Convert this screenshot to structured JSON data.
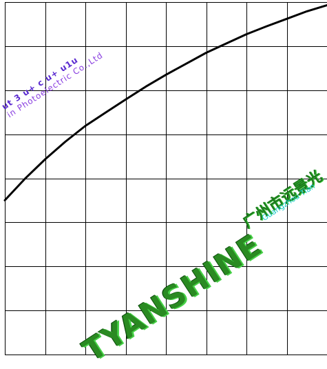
{
  "chart_data": {
    "type": "line",
    "title": "",
    "xlabel": "",
    "ylabel": "",
    "xlim": [
      0,
      8
    ],
    "ylim": [
      0,
      8
    ],
    "grid": true,
    "series": [
      {
        "x": [
          0,
          0.5,
          1,
          1.5,
          2,
          2.5,
          3,
          3.5,
          4,
          4.5,
          5,
          5.5,
          6,
          6.5,
          7,
          7.5,
          8
        ],
        "y": [
          3.5,
          3.99,
          4.43,
          4.83,
          5.19,
          5.49,
          5.79,
          6.08,
          6.35,
          6.6,
          6.85,
          7.06,
          7.27,
          7.45,
          7.62,
          7.79,
          7.93
        ],
        "color": "#000000"
      }
    ]
  },
  "watermark": {
    "upper_line1": "ut 3 u+ c u+ u1u",
    "upper_line2": "in Photoelectric Co.,Ltd",
    "brand": "TYANSHINE",
    "chinese": "广州市远景光",
    "en_small": "Guangzhou Tian"
  }
}
